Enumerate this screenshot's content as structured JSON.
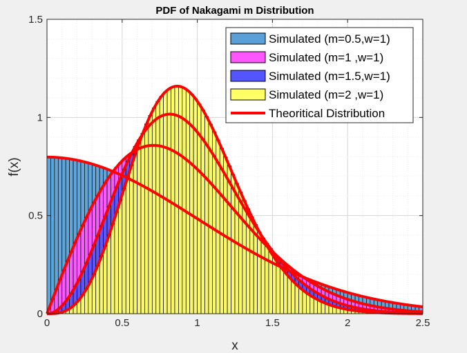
{
  "chart_data": {
    "type": "bar",
    "title": "PDF of Nakagami m Distribution",
    "xlabel": "x",
    "ylabel": "f(x)",
    "xlim": [
      0,
      2.5
    ],
    "ylim": [
      0,
      1.5
    ],
    "xticks": [
      "0",
      "0.5",
      "1",
      "1.5",
      "2",
      "2.5"
    ],
    "yticks": [
      "0",
      "0.5",
      "1",
      "1.5"
    ],
    "grid": true,
    "legend_position": "top-right",
    "series": [
      {
        "name": "Simulated (m=0.5,w=1)",
        "m": 0.5,
        "omega": 1,
        "color": "#5aa0d6"
      },
      {
        "name": "Simulated (m=1 ,w=1)",
        "m": 1,
        "omega": 1,
        "color": "#ff55ff"
      },
      {
        "name": "Simulated (m=1.5,w=1)",
        "m": 1.5,
        "omega": 1,
        "color": "#5555ff"
      },
      {
        "name": "Simulated (m=2 ,w=1)",
        "m": 2,
        "omega": 1,
        "color": "#ffff66"
      }
    ],
    "theory": {
      "name": "Theoritical Distribution",
      "color": "#ff0000"
    },
    "bin_width": 0.025
  }
}
